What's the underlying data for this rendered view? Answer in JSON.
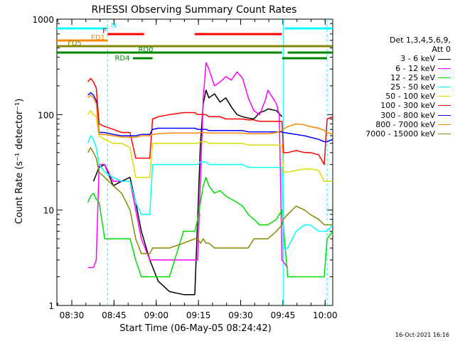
{
  "chart_data": {
    "type": "line",
    "title": "RHESSI Observing Summary Count Rates",
    "xlabel": "Start Time (06-May-05 08:24:42)",
    "ylabel": "Count Rate (s⁻¹ detector⁻¹)",
    "yscale": "log",
    "ylim": [
      1,
      1000
    ],
    "xlim_minutes": [
      0,
      98
    ],
    "x_ticks": [
      "08:30",
      "08:45",
      "09:00",
      "09:15",
      "09:30",
      "09:45",
      "10:00"
    ],
    "x_tick_minutes": [
      5.3,
      20.3,
      35.3,
      50.3,
      65.3,
      80.3,
      95.3
    ],
    "y_ticks": [
      "1",
      "10",
      "100",
      "1000"
    ],
    "y_tick_values": [
      1,
      10,
      100,
      1000
    ],
    "legend_header": [
      "Det 1,3,4,5,6,9,",
      "Att 0"
    ],
    "series": [
      {
        "name": "3 - 6 keV",
        "color": "#000000",
        "x": [
          0,
          3,
          5,
          7,
          9,
          11,
          13,
          15,
          17,
          20,
          23,
          26,
          28,
          30,
          33,
          36,
          40,
          45,
          49,
          50,
          51,
          52,
          53,
          54,
          56,
          58,
          60,
          62,
          64,
          66,
          68,
          70,
          72,
          74,
          75,
          78,
          80,
          80.5
        ],
        "y": [
          null,
          null,
          null,
          null,
          null,
          null,
          20,
          28,
          30,
          18,
          20,
          22,
          12,
          6,
          3,
          1.8,
          1.4,
          1.3,
          1.3,
          8,
          50,
          130,
          180,
          150,
          165,
          135,
          150,
          120,
          100,
          95,
          92,
          90,
          105,
          110,
          115,
          110,
          95,
          null
        ]
      },
      {
        "name": "6 - 12 keV",
        "color": "#ff00ff",
        "x": [
          0,
          10,
          11,
          12,
          13,
          14,
          15,
          17,
          20,
          23,
          26,
          28,
          30,
          33,
          36,
          40,
          45,
          49,
          50,
          51,
          52,
          53,
          54,
          56,
          58,
          60,
          62,
          64,
          66,
          68,
          70,
          72,
          74,
          75,
          78,
          79,
          80,
          82,
          85
        ],
        "y": [
          null,
          null,
          2.5,
          2.5,
          2.5,
          3,
          30,
          30,
          20,
          20,
          20,
          10,
          5,
          3,
          3,
          3,
          3,
          3,
          3,
          20,
          150,
          350,
          300,
          200,
          220,
          250,
          230,
          280,
          240,
          150,
          110,
          100,
          140,
          180,
          130,
          100,
          3,
          2.5,
          null
        ]
      },
      {
        "name": "12 - 25 keV",
        "color": "#00dd00",
        "x": [
          0,
          10,
          11,
          12,
          13,
          14,
          15,
          17,
          20,
          23,
          26,
          28,
          30,
          33,
          36,
          40,
          45,
          49,
          50,
          51,
          52,
          53,
          54,
          56,
          58,
          60,
          62,
          64,
          66,
          68,
          70,
          72,
          74,
          75,
          78,
          80,
          82,
          85,
          88,
          90,
          93,
          95,
          96,
          98
        ],
        "y": [
          null,
          null,
          12,
          14,
          15,
          13,
          12,
          5,
          5,
          5,
          5,
          3,
          2,
          2,
          2,
          2,
          6,
          6,
          8,
          12,
          18,
          22,
          18,
          15,
          16,
          14,
          13,
          12,
          11,
          9,
          8,
          7,
          7,
          7,
          8,
          10,
          2,
          2,
          2,
          2,
          2,
          2,
          5,
          6
        ]
      },
      {
        "name": "25 - 50 keV",
        "color": "#00ffff",
        "x": [
          0,
          10,
          11,
          12,
          13,
          14,
          15,
          17,
          20,
          23,
          26,
          28,
          30,
          33,
          34,
          36,
          40,
          45,
          49,
          50,
          51,
          52,
          53,
          54,
          56,
          58,
          60,
          62,
          64,
          66,
          68,
          70,
          72,
          74,
          75,
          78,
          80,
          80.5,
          82,
          85,
          88,
          90,
          93,
          95,
          96,
          98
        ],
        "y": [
          null,
          null,
          50,
          60,
          55,
          45,
          30,
          25,
          22,
          20,
          20,
          12,
          9,
          9,
          30,
          30,
          30,
          30,
          30,
          30,
          32,
          32,
          32,
          30,
          30,
          30,
          30,
          30,
          30,
          30,
          28,
          28,
          28,
          28,
          28,
          28,
          28,
          4,
          4,
          6,
          7,
          7,
          6,
          6,
          6,
          7
        ]
      },
      {
        "name": "50 - 100 keV",
        "color": "#dddd00",
        "x": [
          0,
          10,
          11,
          12,
          13,
          14,
          15,
          17,
          20,
          23,
          26,
          28,
          30,
          33,
          34,
          36,
          40,
          45,
          49,
          50,
          51,
          52,
          53,
          54,
          56,
          58,
          60,
          62,
          64,
          66,
          68,
          70,
          72,
          74,
          75,
          78,
          80,
          80.5,
          82,
          85,
          88,
          90,
          93,
          95,
          96,
          98
        ],
        "y": [
          null,
          null,
          100,
          110,
          100,
          95,
          60,
          55,
          50,
          50,
          45,
          22,
          22,
          22,
          50,
          50,
          50,
          50,
          50,
          50,
          52,
          52,
          52,
          50,
          50,
          50,
          50,
          50,
          50,
          50,
          48,
          48,
          48,
          48,
          48,
          48,
          48,
          25,
          25,
          26,
          27,
          27,
          26,
          20,
          20,
          20
        ]
      },
      {
        "name": "100 - 300 keV",
        "color": "#ff0000",
        "x": [
          0,
          10,
          11,
          12,
          13,
          14,
          15,
          17,
          20,
          23,
          26,
          28,
          30,
          33,
          34,
          36,
          40,
          45,
          49,
          50,
          51,
          52,
          53,
          54,
          56,
          58,
          60,
          62,
          64,
          66,
          68,
          70,
          72,
          74,
          75,
          78,
          80,
          80.5,
          82,
          85,
          88,
          90,
          93,
          95,
          96,
          98
        ],
        "y": [
          null,
          null,
          220,
          240,
          220,
          190,
          80,
          75,
          70,
          65,
          65,
          35,
          35,
          35,
          90,
          95,
          100,
          105,
          105,
          100,
          100,
          100,
          100,
          95,
          95,
          95,
          90,
          90,
          90,
          90,
          88,
          88,
          85,
          85,
          85,
          85,
          85,
          40,
          40,
          42,
          40,
          40,
          38,
          30,
          90,
          95
        ]
      },
      {
        "name": "300 - 800 keV",
        "color": "#0000ff",
        "x": [
          0,
          10,
          11,
          12,
          13,
          14,
          15,
          17,
          20,
          23,
          26,
          28,
          30,
          33,
          34,
          36,
          40,
          45,
          49,
          50,
          51,
          52,
          53,
          54,
          56,
          58,
          60,
          62,
          64,
          66,
          68,
          70,
          72,
          74,
          75,
          78,
          80,
          80.5,
          82,
          85,
          88,
          90,
          93,
          95,
          96,
          98
        ],
        "y": [
          null,
          null,
          160,
          170,
          160,
          140,
          65,
          65,
          62,
          60,
          60,
          60,
          62,
          62,
          70,
          72,
          72,
          72,
          72,
          70,
          70,
          70,
          70,
          68,
          68,
          68,
          68,
          68,
          68,
          68,
          66,
          66,
          66,
          66,
          66,
          66,
          66,
          65,
          64,
          62,
          60,
          58,
          55,
          52,
          52,
          55
        ]
      },
      {
        "name": "800 - 7000 keV",
        "color": "#ff8800",
        "x": [
          0,
          10,
          11,
          12,
          13,
          14,
          15,
          17,
          20,
          23,
          26,
          28,
          30,
          33,
          34,
          36,
          40,
          45,
          49,
          50,
          51,
          52,
          53,
          54,
          56,
          58,
          60,
          62,
          64,
          66,
          68,
          70,
          72,
          74,
          75,
          78,
          80,
          80.5,
          82,
          85,
          88,
          90,
          93,
          95,
          96,
          98
        ],
        "y": [
          null,
          null,
          150,
          160,
          150,
          130,
          62,
          62,
          60,
          58,
          58,
          58,
          60,
          60,
          62,
          63,
          64,
          64,
          64,
          64,
          65,
          65,
          65,
          64,
          64,
          64,
          64,
          64,
          64,
          64,
          63,
          63,
          63,
          63,
          63,
          65,
          68,
          70,
          75,
          80,
          78,
          75,
          72,
          68,
          65,
          62
        ]
      },
      {
        "name": "7000 - 15000 keV",
        "color": "#888800",
        "x": [
          0,
          10,
          11,
          12,
          13,
          14,
          15,
          17,
          20,
          23,
          26,
          28,
          30,
          33,
          34,
          36,
          40,
          45,
          49,
          50,
          51,
          52,
          53,
          54,
          56,
          58,
          60,
          62,
          64,
          66,
          68,
          70,
          72,
          74,
          75,
          78,
          80,
          80.5,
          82,
          85,
          88,
          90,
          93,
          95,
          96,
          98
        ],
        "y": [
          null,
          null,
          40,
          45,
          40,
          35,
          25,
          22,
          18,
          15,
          10,
          5,
          3.5,
          3.5,
          4,
          4,
          4,
          4.5,
          5,
          5,
          4.5,
          5,
          4.5,
          4.5,
          4,
          4,
          4,
          4,
          4,
          4,
          4,
          5,
          5,
          5,
          5,
          6,
          7,
          8,
          9,
          11,
          10,
          9,
          8,
          7,
          7,
          7
        ]
      }
    ],
    "state_bars": [
      {
        "label": "N",
        "color": "#00ffff",
        "segments": [
          [
            0,
            18
          ],
          [
            81,
            98
          ]
        ]
      },
      {
        "label": "F",
        "color": "#ff0000",
        "segments": [
          [
            18,
            31
          ],
          [
            49,
            80
          ]
        ]
      },
      {
        "label": "FD1",
        "color": "#ff8800",
        "segments": [
          [
            0,
            18
          ]
        ]
      },
      {
        "label": "FD5",
        "color": "#888800",
        "segments": [
          [
            0,
            98
          ]
        ]
      },
      {
        "label": "RD0",
        "color": "#008800",
        "segments": [
          [
            0,
            80
          ],
          [
            82,
            98
          ]
        ]
      },
      {
        "label": "RD4",
        "color": "#008800",
        "segments": [
          [
            27,
            34
          ],
          [
            80,
            96
          ]
        ]
      }
    ],
    "vlines_solid": [
      80.5
    ],
    "vlines_dashed": [
      18,
      96
    ]
  },
  "timestamp": "16-Oct-2021 16:16"
}
